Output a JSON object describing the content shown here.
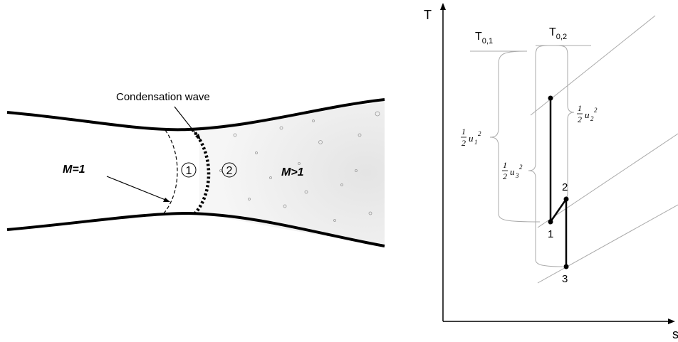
{
  "nozzle": {
    "annotation": "Condensation wave",
    "throat_label": "M=1",
    "region_1": "1",
    "region_2": "2",
    "supersonic_label": "M>1"
  },
  "ts_diagram": {
    "y_axis": "T",
    "x_axis": "s",
    "stagnation_1": {
      "base": "T",
      "sub": "0,1"
    },
    "stagnation_2": {
      "base": "T",
      "sub": "0,2"
    },
    "kinetic_1": {
      "num": "1",
      "den": "2",
      "var": "u",
      "sub": "1",
      "sup": "2"
    },
    "kinetic_3": {
      "num": "1",
      "den": "2",
      "var": "u",
      "sub": "3",
      "sup": "2"
    },
    "kinetic_2": {
      "num": "1",
      "den": "2",
      "var": "u",
      "sub": "2",
      "sup": "2"
    },
    "points": [
      "1",
      "2",
      "3"
    ]
  }
}
